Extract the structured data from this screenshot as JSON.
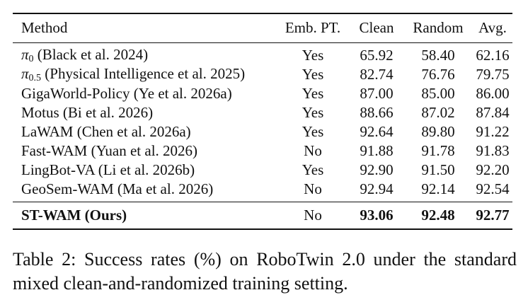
{
  "table": {
    "headers": {
      "method": "Method",
      "emb_pt": "Emb. PT.",
      "clean": "Clean",
      "random": "Random",
      "avg": "Avg."
    },
    "rows": [
      {
        "method_symbol": "π",
        "method_subscript": "0",
        "method": " (Black et al. 2024)",
        "emb_pt": "Yes",
        "clean": "65.92",
        "random": "58.40",
        "avg": "62.16"
      },
      {
        "method_symbol": "π",
        "method_subscript": "0.5",
        "method": " (Physical Intelligence et al. 2025)",
        "emb_pt": "Yes",
        "clean": "82.74",
        "random": "76.76",
        "avg": "79.75"
      },
      {
        "method": "GigaWorld-Policy (Ye et al. 2026a)",
        "emb_pt": "Yes",
        "clean": "87.00",
        "random": "85.00",
        "avg": "86.00"
      },
      {
        "method": "Motus (Bi et al. 2026)",
        "emb_pt": "Yes",
        "clean": "88.66",
        "random": "87.02",
        "avg": "87.84"
      },
      {
        "method": "LaWAM (Chen et al. 2026a)",
        "emb_pt": "Yes",
        "clean": "92.64",
        "random": "89.80",
        "avg": "91.22"
      },
      {
        "method": "Fast-WAM (Yuan et al. 2026)",
        "emb_pt": "No",
        "clean": "91.88",
        "random": "91.78",
        "avg": "91.83"
      },
      {
        "method": "LingBot-VA (Li et al. 2026b)",
        "emb_pt": "Yes",
        "clean": "92.90",
        "random": "91.50",
        "avg": "92.20"
      },
      {
        "method": "GeoSem-WAM (Ma et al. 2026)",
        "emb_pt": "No",
        "clean": "92.94",
        "random": "92.14",
        "avg": "92.54"
      }
    ],
    "ours": {
      "method": "ST-WAM (Ours)",
      "emb_pt": "No",
      "clean": "93.06",
      "random": "92.48",
      "avg": "92.77"
    }
  },
  "caption": "Table 2: Success rates (%) on RoboTwin 2.0 under the standard mixed clean-and-randomized training setting."
}
